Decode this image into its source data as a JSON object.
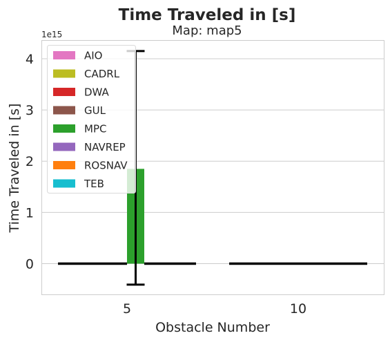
{
  "chart_data": {
    "type": "bar",
    "title": "Time Traveled in [s]",
    "subtitle": "Map: map5",
    "xlabel": "Obstacle Number",
    "ylabel": "Time Traveled in [s]",
    "y_exponent_label": "1e15",
    "categories": [
      "5",
      "10"
    ],
    "yticks": [
      "0",
      "1",
      "2",
      "3",
      "4"
    ],
    "ylim": [
      -0.6,
      4.35
    ],
    "ylim_units": "1e15",
    "grid": true,
    "legend_position": "top-left",
    "series": [
      {
        "name": "AIO",
        "color": "#e377c2",
        "values": [
          0,
          0
        ]
      },
      {
        "name": "CADRL",
        "color": "#bcbd22",
        "values": [
          0,
          0
        ]
      },
      {
        "name": "DWA",
        "color": "#d62728",
        "values": [
          0,
          0
        ]
      },
      {
        "name": "GUL",
        "color": "#8c564b",
        "values": [
          0,
          0
        ]
      },
      {
        "name": "MPC",
        "color": "#2ca02c",
        "values": [
          1.85,
          0
        ]
      },
      {
        "name": "NAVREP",
        "color": "#9467bd",
        "values": [
          0,
          0
        ]
      },
      {
        "name": "ROSNAV",
        "color": "#ff7f0e",
        "values": [
          0,
          0
        ]
      },
      {
        "name": "TEB",
        "color": "#17becf",
        "values": [
          0,
          0
        ]
      }
    ],
    "error_bars": [
      {
        "series": "MPC",
        "category": "5",
        "low": -0.41,
        "high": 4.15
      }
    ]
  }
}
